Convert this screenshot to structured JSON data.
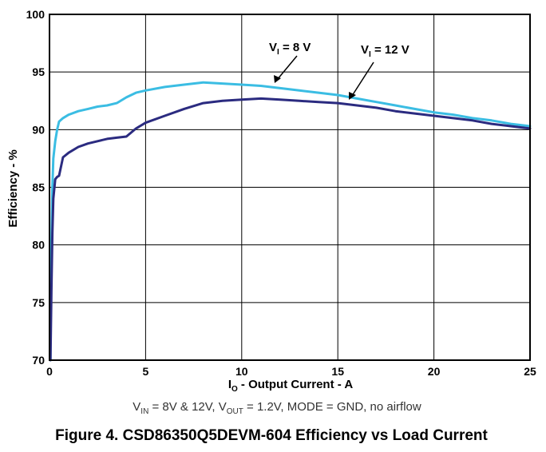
{
  "chart_data": {
    "type": "line",
    "title": "Figure 4. CSD86350Q5DEVM-604 Efficiency vs Load Current",
    "subtitle_parts": {
      "v1": "V",
      "v1_sub": "IN",
      "text1": " = 8V & 12V, V",
      "v2_sub": "OUT",
      "text2": " = 1.2V, MODE = GND, no airflow"
    },
    "xlabel_parts": {
      "main": "I",
      "sub": "O",
      "rest": " - Output Current - A"
    },
    "ylabel": "Efficiency - %",
    "xlim": [
      0,
      25
    ],
    "ylim": [
      70,
      100
    ],
    "xticks": [
      0,
      5,
      10,
      15,
      20,
      25
    ],
    "yticks": [
      70,
      75,
      80,
      85,
      90,
      95,
      100
    ],
    "xtick_labels": [
      "0",
      "5",
      "10",
      "15",
      "20",
      "25"
    ],
    "ytick_labels": [
      "70",
      "75",
      "80",
      "85",
      "90",
      "95",
      "100"
    ],
    "grid": true,
    "series": [
      {
        "name": "VI = 8 V",
        "label_main": "V",
        "label_sub": "I",
        "label_rest": " = 8 V",
        "color": "#3bbde3",
        "x": [
          0.05,
          0.1,
          0.15,
          0.2,
          0.3,
          0.4,
          0.5,
          0.7,
          1.0,
          1.5,
          2.0,
          2.5,
          3.0,
          3.5,
          4.0,
          4.5,
          5.0,
          6.0,
          7.0,
          8.0,
          9.0,
          10.0,
          11.0,
          12.0,
          13.0,
          14.0,
          15.0,
          16.0,
          17.0,
          18.0,
          19.0,
          20.0,
          21.0,
          22.0,
          23.0,
          24.0,
          25.0
        ],
        "y": [
          74.0,
          80.0,
          85.0,
          87.5,
          89.0,
          90.0,
          90.7,
          91.0,
          91.3,
          91.6,
          91.8,
          92.0,
          92.1,
          92.3,
          92.8,
          93.2,
          93.4,
          93.7,
          93.9,
          94.1,
          94.0,
          93.9,
          93.8,
          93.6,
          93.4,
          93.2,
          93.0,
          92.7,
          92.4,
          92.1,
          91.8,
          91.5,
          91.3,
          91.0,
          90.8,
          90.5,
          90.3
        ]
      },
      {
        "name": "VI = 12 V",
        "label_main": "V",
        "label_sub": "I",
        "label_rest": " = 12 V",
        "color": "#2b2b80",
        "x": [
          0.05,
          0.1,
          0.15,
          0.2,
          0.3,
          0.4,
          0.5,
          0.7,
          1.0,
          1.5,
          2.0,
          2.5,
          3.0,
          3.5,
          4.0,
          4.5,
          5.0,
          6.0,
          7.0,
          8.0,
          9.0,
          10.0,
          11.0,
          12.0,
          13.0,
          14.0,
          15.0,
          16.0,
          17.0,
          18.0,
          19.0,
          20.0,
          21.0,
          22.0,
          23.0,
          24.0,
          25.0
        ],
        "y": [
          70.0,
          76.0,
          81.0,
          84.0,
          85.7,
          85.9,
          86.0,
          87.6,
          88.0,
          88.5,
          88.8,
          89.0,
          89.2,
          89.3,
          89.4,
          90.1,
          90.6,
          91.2,
          91.8,
          92.3,
          92.5,
          92.6,
          92.7,
          92.6,
          92.5,
          92.4,
          92.3,
          92.1,
          91.9,
          91.6,
          91.4,
          91.2,
          91.0,
          90.8,
          90.5,
          90.3,
          90.1
        ]
      }
    ]
  }
}
